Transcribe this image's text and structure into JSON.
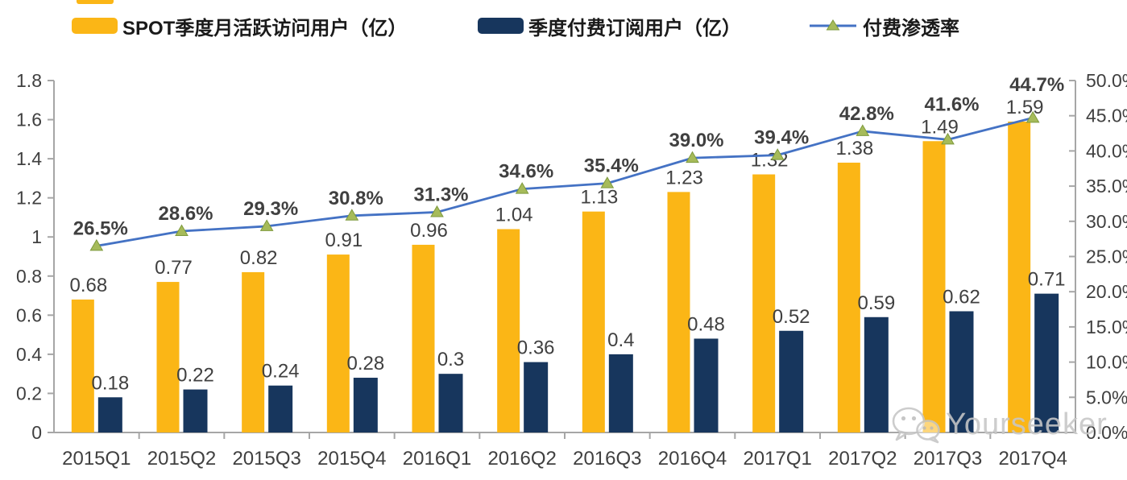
{
  "legend": {
    "items": [
      {
        "label": "SPOT季度月活跃访问用户（亿）",
        "type": "bar",
        "swatch_color": "#FBB616"
      },
      {
        "label": "季度付费订阅用户（亿）",
        "type": "bar",
        "swatch_color": "#17365D"
      },
      {
        "label": "付费渗透率",
        "type": "line",
        "line_color": "#4472C4",
        "marker_color": "#A6BB5A"
      }
    ]
  },
  "watermark": {
    "text": "Yourseeker",
    "icon": "wechat-logo"
  },
  "colors": {
    "mau_bar": "#FBB616",
    "subs_bar": "#17365D",
    "penetration_line": "#4472C4",
    "marker_fill": "#A6BB5A",
    "marker_stroke": "#7E9A3D",
    "axis": "#A6A6A6",
    "artifact": "#FBB616"
  },
  "chart_data": {
    "type": "bar",
    "subtype": "grouped-bars-plus-line-dual-axis",
    "title": "",
    "categories": [
      "2015Q1",
      "2015Q2",
      "2015Q3",
      "2015Q4",
      "2016Q1",
      "2016Q2",
      "2016Q3",
      "2016Q4",
      "2017Q1",
      "2017Q2",
      "2017Q3",
      "2017Q4"
    ],
    "series": [
      {
        "name": "SPOT季度月活跃访问用户（亿）",
        "type": "bar",
        "axis": "left",
        "color": "#FBB616",
        "values": [
          0.68,
          0.77,
          0.82,
          0.91,
          0.96,
          1.04,
          1.13,
          1.23,
          1.32,
          1.38,
          1.49,
          1.59
        ],
        "labels": [
          "0.68",
          "0.77",
          "0.82",
          "0.91",
          "0.96",
          "1.04",
          "1.13",
          "1.23",
          "1.32",
          "1.38",
          "1.49",
          "1.59"
        ]
      },
      {
        "name": "季度付费订阅用户（亿）",
        "type": "bar",
        "axis": "left",
        "color": "#17365D",
        "values": [
          0.18,
          0.22,
          0.24,
          0.28,
          0.3,
          0.36,
          0.4,
          0.48,
          0.52,
          0.59,
          0.62,
          0.71
        ],
        "labels": [
          "0.18",
          "0.22",
          "0.24",
          "0.28",
          "0.3",
          "0.36",
          "0.4",
          "0.48",
          "0.52",
          "0.59",
          "0.62",
          "0.71"
        ]
      },
      {
        "name": "付费渗透率",
        "type": "line",
        "axis": "right",
        "color": "#4472C4",
        "marker": "triangle",
        "marker_color": "#A6BB5A",
        "values": [
          26.5,
          28.6,
          29.3,
          30.8,
          31.3,
          34.6,
          35.4,
          39.0,
          39.4,
          42.8,
          41.6,
          44.7
        ],
        "labels": [
          "26.5%",
          "28.6%",
          "29.3%",
          "30.8%",
          "31.3%",
          "34.6%",
          "35.4%",
          "39.0%",
          "39.4%",
          "42.8%",
          "41.6%",
          "44.7%"
        ]
      }
    ],
    "left_axis": {
      "min": 0,
      "max": 1.8,
      "tick_labels": [
        "1.8",
        "1.6",
        "1.4",
        "1.2",
        "1",
        "0.8",
        "0.6",
        "0.4",
        "0.2",
        "0"
      ]
    },
    "right_axis": {
      "min": 0,
      "max": 50,
      "unit": "%",
      "tick_labels": [
        "50.0%",
        "45.0%",
        "40.0%",
        "35.0%",
        "30.0%",
        "25.0%",
        "20.0%",
        "15.0%",
        "10.0%",
        "5.0%",
        "0.0%"
      ]
    },
    "grid": false,
    "legend_position": "top"
  }
}
